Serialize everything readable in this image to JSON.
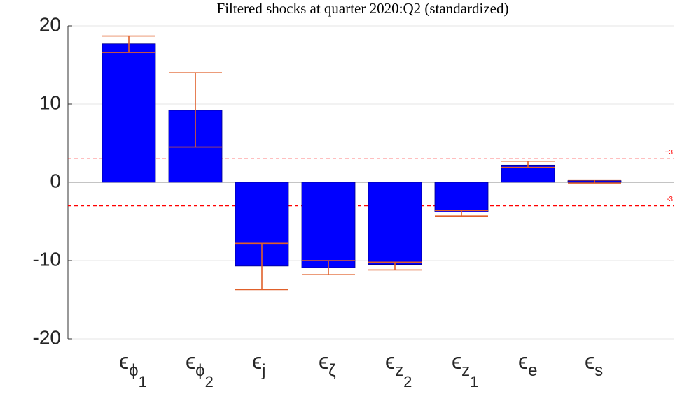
{
  "chart_data": {
    "type": "bar",
    "title": "Filtered shocks at quarter 2020:Q2 (standardized)",
    "categories": [
      {
        "base": "ϵ",
        "sub": "ϕ",
        "sub2": "1"
      },
      {
        "base": "ϵ",
        "sub": "ϕ",
        "sub2": "2"
      },
      {
        "base": "ϵ",
        "sub": "j"
      },
      {
        "base": "ϵ",
        "sub": "ζ"
      },
      {
        "base": "ϵ",
        "sub": "z",
        "sub2": "2"
      },
      {
        "base": "ϵ",
        "sub": "z",
        "sub2": "1"
      },
      {
        "base": "ϵ",
        "sub": "e"
      },
      {
        "base": "ϵ",
        "sub": "s"
      }
    ],
    "series": [
      {
        "color": "#0000ff",
        "error_color": "#e0602a",
        "values": [
          17.7,
          9.2,
          -10.7,
          -10.9,
          -10.5,
          -3.8,
          2.2,
          0.2
        ],
        "lower": [
          16.6,
          4.5,
          -13.7,
          -11.8,
          -11.2,
          -4.3,
          1.9,
          -0.1
        ],
        "upper": [
          18.7,
          14.0,
          -7.8,
          -10.0,
          -10.2,
          -3.6,
          2.7,
          0.3
        ]
      }
    ],
    "ylim": [
      -20,
      20
    ],
    "yticks": [
      -20,
      -10,
      0,
      10,
      20
    ],
    "grid": true,
    "reference_lines": [
      {
        "value": 3,
        "label": "+3",
        "color": "#ff0000"
      },
      {
        "value": -3,
        "label": "-3",
        "color": "#ff0000"
      }
    ]
  }
}
